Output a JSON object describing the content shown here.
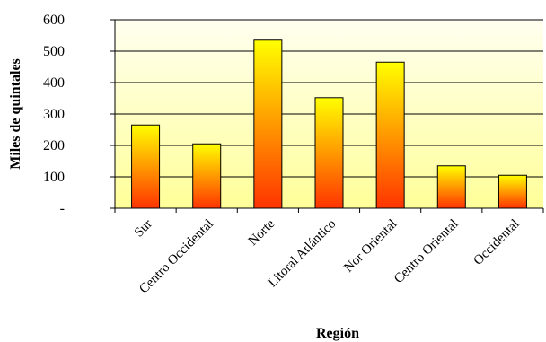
{
  "chart_data": {
    "type": "bar",
    "title": "",
    "xlabel": "Región",
    "ylabel": "Miles de quintales",
    "categories": [
      "Sur",
      "Centro Occidental",
      "Norte",
      "Litoral Atlántico",
      "Nor Oriental",
      "Centro Oriental",
      "Occidental"
    ],
    "values": [
      265,
      205,
      535,
      352,
      465,
      135,
      105
    ],
    "ylim": [
      0,
      600
    ],
    "yticks": [
      0,
      100,
      200,
      300,
      400,
      500,
      600
    ],
    "ytick_labels": [
      "-",
      "100",
      "200",
      "300",
      "400",
      "500",
      "600"
    ],
    "grid": true,
    "legend": "none",
    "colors": {
      "bar_top": "#ffff00",
      "bar_bottom": "#ff3300",
      "plot_bg_top": "#fffff0",
      "plot_bg_bottom": "#ffff99",
      "gridline": "#000000"
    }
  }
}
